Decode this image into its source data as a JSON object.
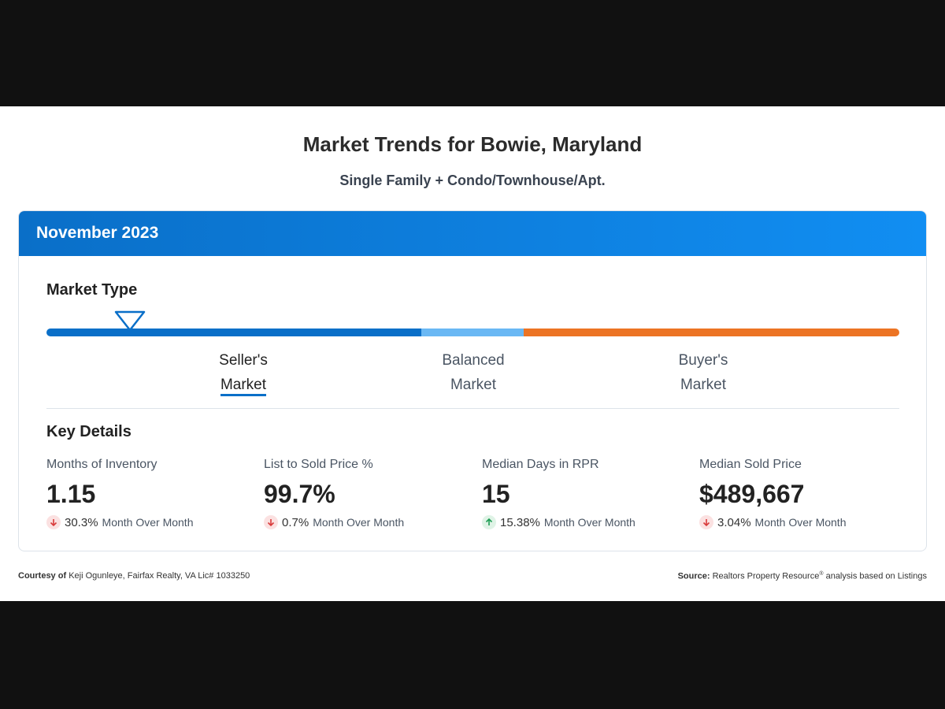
{
  "header": {
    "title": "Market Trends for Bowie, Maryland",
    "subtitle": "Single Family + Condo/Townhouse/Apt."
  },
  "card": {
    "period": "November 2023",
    "market_type": {
      "title": "Market Type",
      "selected": 0,
      "options": [
        {
          "lines": [
            "Seller's",
            "Market"
          ]
        },
        {
          "lines": [
            "Balanced",
            "Market"
          ]
        },
        {
          "lines": [
            "Buyer's",
            "Market"
          ]
        }
      ]
    },
    "key_details": {
      "title": "Key Details",
      "metrics": [
        {
          "label": "Months of Inventory",
          "value": "1.15",
          "change": "30.3%",
          "direction": "down",
          "period": "Month Over Month"
        },
        {
          "label": "List to Sold Price %",
          "value": "99.7%",
          "change": "0.7%",
          "direction": "down",
          "period": "Month Over Month"
        },
        {
          "label": "Median Days in RPR",
          "value": "15",
          "change": "15.38%",
          "direction": "up",
          "period": "Month Over Month"
        },
        {
          "label": "Median Sold Price",
          "value": "$489,667",
          "change": "3.04%",
          "direction": "down",
          "period": "Month Over Month"
        }
      ]
    }
  },
  "footer": {
    "courtesy_label": "Courtesy of",
    "courtesy": "Keji Ogunleye, Fairfax Realty, VA Lic# 1033250",
    "source_label": "Source:",
    "source": "Realtors Property Resource",
    "source_mark": "®",
    "source_rest": "analysis based on Listings"
  }
}
